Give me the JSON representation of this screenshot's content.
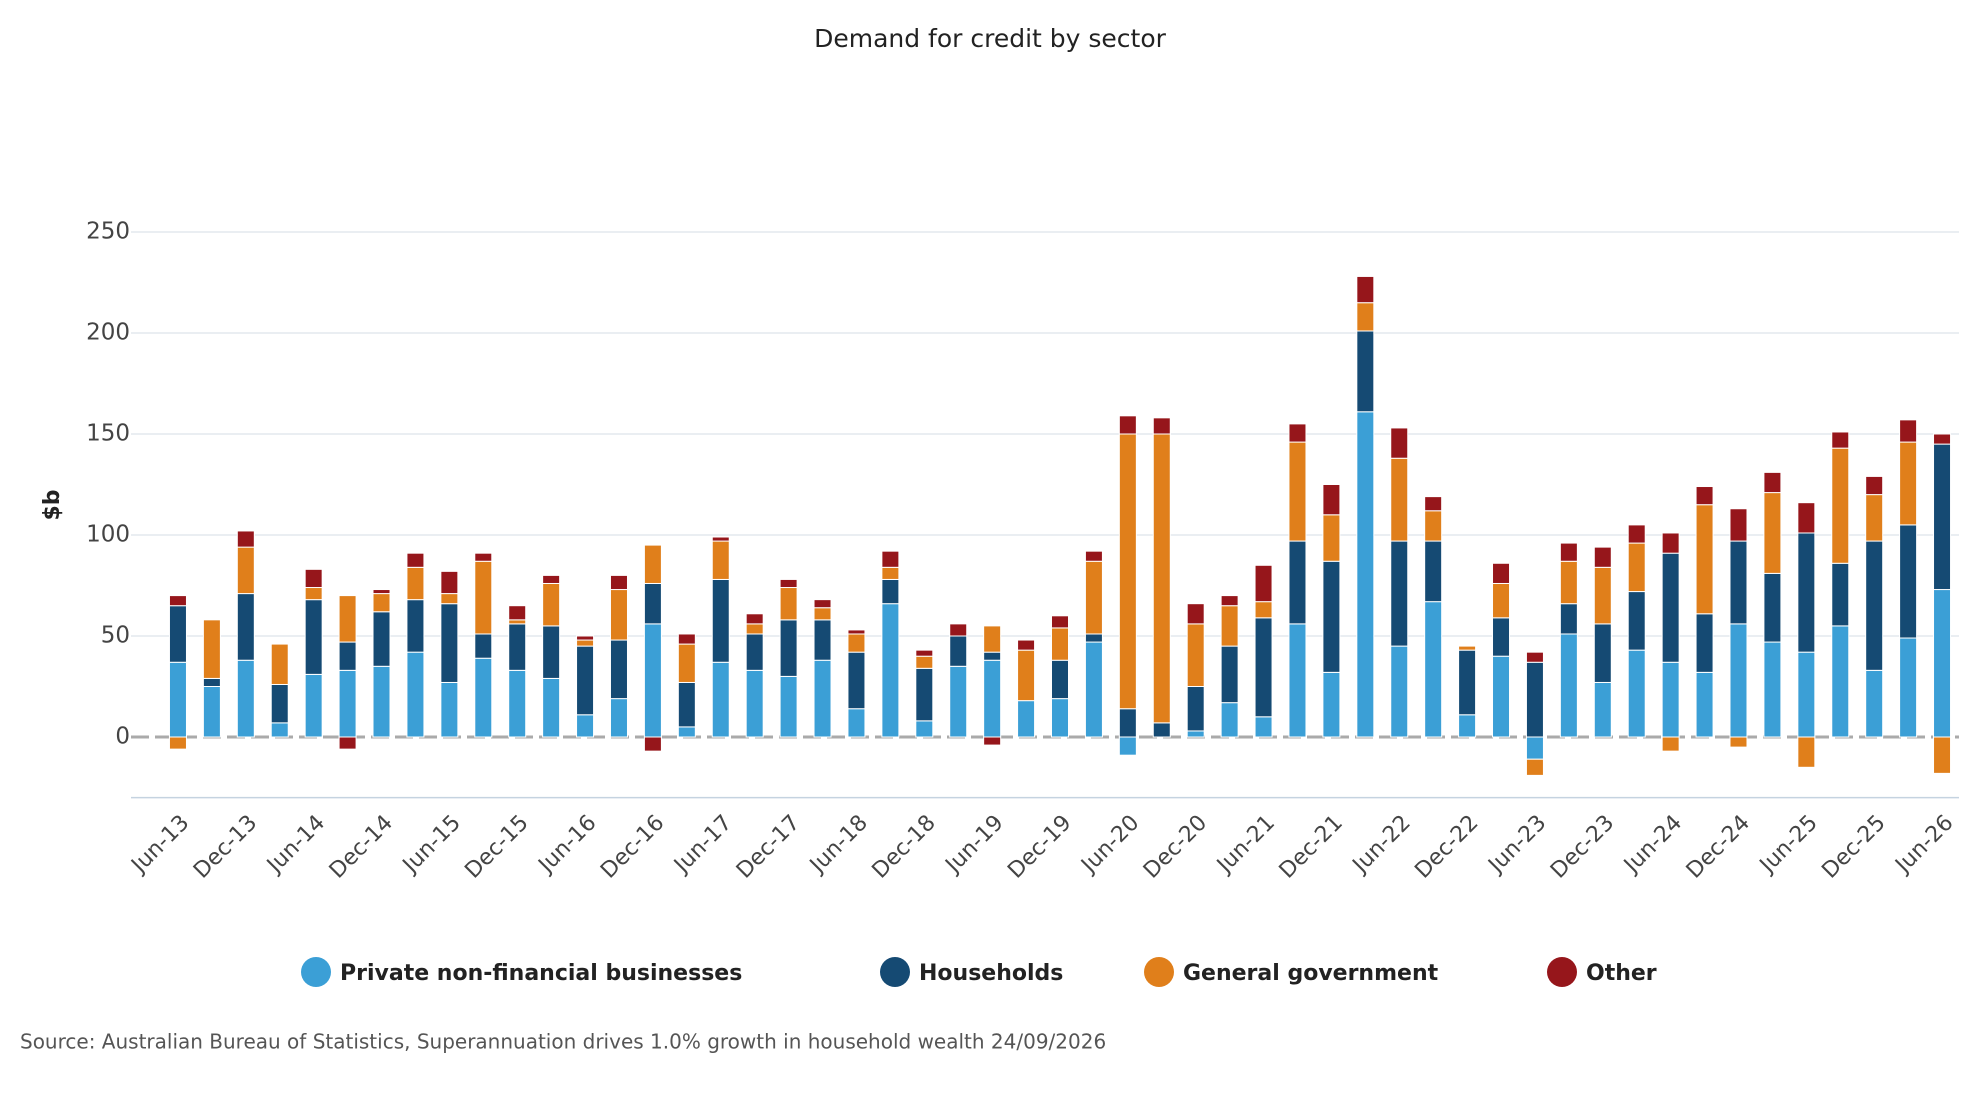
{
  "chart_data": {
    "type": "stacked_bar",
    "title": "Demand for credit by sector",
    "y_label": "$b",
    "source": "Source: Australian Bureau of Statistics, Superannuation drives 1.0% growth in household wealth 24/09/2026",
    "categories": [
      "Jun-13",
      null,
      "Dec-13",
      null,
      "Jun-14",
      null,
      "Dec-14",
      null,
      "Jun-15",
      null,
      "Dec-15",
      null,
      "Jun-16",
      null,
      "Dec-16",
      null,
      "Jun-17",
      null,
      "Dec-17",
      null,
      "Jun-18",
      null,
      "Dec-18",
      null,
      "Jun-19",
      null,
      "Dec-19",
      null,
      "Jun-20",
      null,
      "Dec-20",
      null,
      "Jun-21",
      null,
      "Dec-21",
      null,
      "Jun-22",
      null,
      "Dec-22",
      null,
      "Jun-23",
      null,
      "Dec-23",
      null,
      "Jun-24",
      null,
      "Dec-24",
      null,
      "Jun-25",
      null,
      "Dec-25",
      null,
      "Jun-26"
    ],
    "series": [
      {
        "name": "Private non-financial businesses",
        "color": "#3b9fd6",
        "values": [
          37,
          25,
          38,
          7,
          31,
          33,
          35,
          42,
          27,
          39,
          33,
          29,
          11,
          19,
          56,
          5,
          37,
          33,
          30,
          38,
          14,
          66,
          8,
          35,
          38,
          18,
          19,
          47,
          -9,
          0,
          3,
          17,
          10,
          56,
          32,
          161,
          45,
          67,
          11,
          40,
          -11,
          51,
          27,
          43,
          37,
          32,
          56,
          47,
          42,
          55,
          33,
          49,
          73
        ]
      },
      {
        "name": "Households",
        "color": "#154a73",
        "values": [
          28,
          4,
          33,
          19,
          37,
          14,
          27,
          26,
          39,
          12,
          23,
          26,
          34,
          29,
          20,
          22,
          41,
          18,
          28,
          20,
          28,
          12,
          26,
          15,
          4,
          0,
          19,
          4,
          14,
          7,
          22,
          28,
          49,
          41,
          55,
          40,
          52,
          30,
          32,
          19,
          37,
          15,
          29,
          29,
          54,
          29,
          41,
          34,
          59,
          31,
          64,
          56,
          72
        ]
      },
      {
        "name": "General government",
        "color": "#e07f1b",
        "values": [
          -6,
          29,
          23,
          20,
          6,
          23,
          9,
          16,
          5,
          36,
          2,
          21,
          3,
          25,
          19,
          19,
          19,
          5,
          16,
          6,
          9,
          6,
          6,
          0,
          13,
          25,
          16,
          36,
          136,
          143,
          31,
          20,
          8,
          49,
          23,
          14,
          41,
          15,
          2,
          17,
          -8,
          21,
          28,
          24,
          -7,
          54,
          -5,
          40,
          -15,
          57,
          23,
          41,
          -18
        ]
      },
      {
        "name": "Other",
        "color": "#96161b",
        "values": [
          5,
          0,
          8,
          0,
          9,
          -6,
          2,
          7,
          11,
          4,
          7,
          4,
          2,
          7,
          -7,
          5,
          2,
          5,
          4,
          4,
          2,
          8,
          3,
          6,
          -4,
          5,
          6,
          5,
          9,
          8,
          10,
          5,
          18,
          9,
          15,
          13,
          15,
          7,
          0,
          10,
          5,
          9,
          10,
          9,
          10,
          9,
          16,
          10,
          15,
          8,
          9,
          11,
          5
        ]
      }
    ],
    "ylim": [
      -30,
      250
    ],
    "yticks": [
      0,
      50,
      100,
      150,
      200,
      250
    ],
    "grid": true,
    "legend": "bottom"
  }
}
